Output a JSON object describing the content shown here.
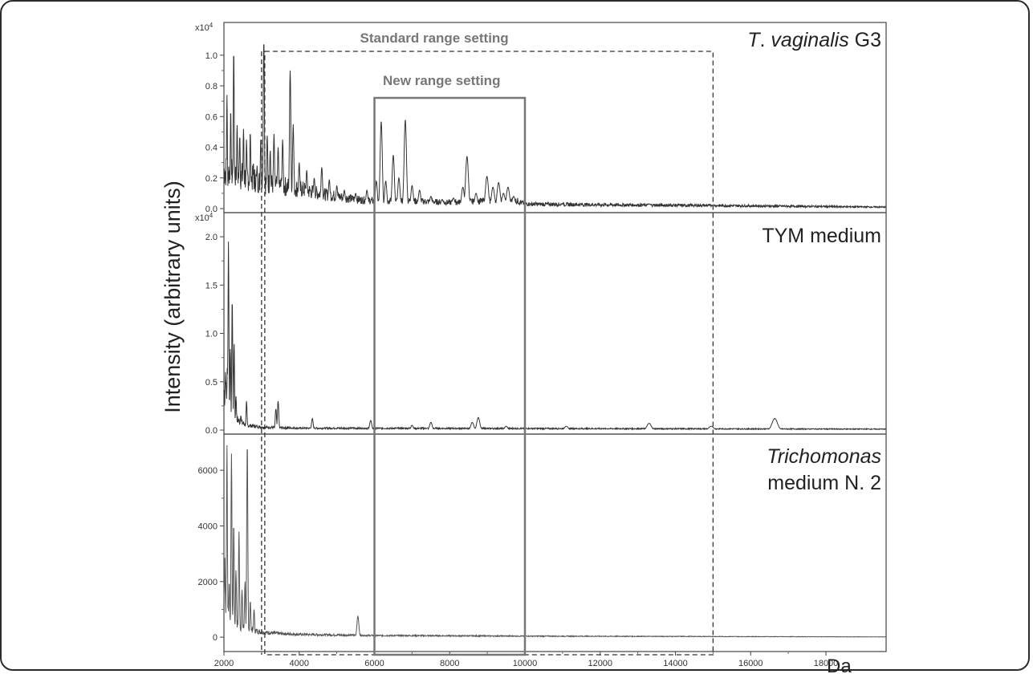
{
  "chart_data": {
    "type": "line",
    "ylabel": "Intensity (arbitrary units)",
    "xlabel": "Da",
    "xlim": [
      2000,
      19600
    ],
    "x_ticks": [
      2000,
      4000,
      6000,
      8000,
      10000,
      12000,
      14000,
      16000,
      18000
    ],
    "x_tick_labels": [
      "2000",
      "4000",
      "6000",
      "8000",
      "10000",
      "12000",
      "14000",
      "16000",
      "18000"
    ],
    "range_boxes": [
      {
        "label": "Standard range setting",
        "x_range": [
          3000,
          15000
        ],
        "style": "dashed"
      },
      {
        "label": "New range setting",
        "x_range": [
          6000,
          10000
        ],
        "style": "solid"
      }
    ],
    "panels": [
      {
        "label_parts": [
          {
            "text": "T",
            "italic": true
          },
          {
            "text": ". ",
            "italic": false
          },
          {
            "text": "vaginalis",
            "italic": true
          },
          {
            "text": " G3",
            "italic": false
          }
        ],
        "exponent_label": "x10",
        "exponent_power": "4",
        "ylim": [
          0,
          1.14
        ],
        "y_ticks": [
          0.0,
          0.2,
          0.4,
          0.6,
          0.8,
          1.0
        ],
        "y_tick_labels": [
          "0.0",
          "0.2",
          "0.4",
          "0.6",
          "0.8",
          "1.0"
        ],
        "baseline_points": [
          [
            2000,
            0.25
          ],
          [
            2300,
            0.22
          ],
          [
            2700,
            0.2
          ],
          [
            3000,
            0.17
          ],
          [
            3500,
            0.15
          ],
          [
            4000,
            0.13
          ],
          [
            4500,
            0.1
          ],
          [
            5000,
            0.08
          ],
          [
            5500,
            0.06
          ],
          [
            6000,
            0.05
          ],
          [
            7000,
            0.05
          ],
          [
            8000,
            0.04
          ],
          [
            9000,
            0.05
          ],
          [
            9800,
            0.05
          ],
          [
            10000,
            0.03
          ],
          [
            12000,
            0.025
          ],
          [
            15000,
            0.02
          ],
          [
            19600,
            0.01
          ]
        ],
        "peaks": [
          [
            2080,
            0.74
          ],
          [
            2180,
            0.65
          ],
          [
            2260,
            1.04
          ],
          [
            2350,
            0.55
          ],
          [
            2420,
            0.48
          ],
          [
            2520,
            0.52
          ],
          [
            2600,
            0.45
          ],
          [
            2700,
            0.5
          ],
          [
            2780,
            0.3
          ],
          [
            2880,
            0.28
          ],
          [
            2980,
            0.46
          ],
          [
            3060,
            1.1
          ],
          [
            3150,
            0.48
          ],
          [
            3230,
            0.38
          ],
          [
            3330,
            0.49
          ],
          [
            3440,
            0.4
          ],
          [
            3560,
            0.45
          ],
          [
            3760,
            0.9
          ],
          [
            3840,
            0.55
          ],
          [
            4000,
            0.3
          ],
          [
            4200,
            0.25
          ],
          [
            4400,
            0.2
          ],
          [
            4600,
            0.27
          ],
          [
            4800,
            0.19
          ],
          [
            5000,
            0.15
          ],
          [
            5200,
            0.12
          ],
          [
            5500,
            0.1
          ],
          [
            5800,
            0.12
          ],
          [
            6050,
            0.18
          ],
          [
            6180,
            0.57
          ],
          [
            6300,
            0.18
          ],
          [
            6500,
            0.35
          ],
          [
            6650,
            0.2
          ],
          [
            6820,
            0.58
          ],
          [
            7000,
            0.15
          ],
          [
            7200,
            0.12
          ],
          [
            7500,
            0.08
          ],
          [
            7800,
            0.06
          ],
          [
            8100,
            0.07
          ],
          [
            8350,
            0.14
          ],
          [
            8460,
            0.34
          ],
          [
            8700,
            0.1
          ],
          [
            8990,
            0.21
          ],
          [
            9150,
            0.14
          ],
          [
            9300,
            0.17
          ],
          [
            9430,
            0.1
          ],
          [
            9550,
            0.14
          ],
          [
            9700,
            0.08
          ],
          [
            11000,
            0.03
          ],
          [
            13300,
            0.03
          ],
          [
            15000,
            0.02
          ]
        ]
      },
      {
        "label_parts": [
          {
            "text": "TYM medium",
            "italic": false
          }
        ],
        "exponent_label": "x10",
        "exponent_power": "4",
        "ylim": [
          0,
          2.15
        ],
        "y_ticks": [
          0.0,
          0.5,
          1.0,
          1.5,
          2.0
        ],
        "y_tick_labels": [
          "0.0",
          "0.5",
          "1.0",
          "1.5",
          "2.0"
        ],
        "baseline_points": [
          [
            2000,
            0.4
          ],
          [
            2150,
            0.3
          ],
          [
            2300,
            0.12
          ],
          [
            2600,
            0.05
          ],
          [
            3000,
            0.03
          ],
          [
            4000,
            0.02
          ],
          [
            19600,
            0.01
          ]
        ],
        "peaks": [
          [
            2040,
            0.6
          ],
          [
            2090,
            0.65
          ],
          [
            2120,
            1.95
          ],
          [
            2170,
            0.85
          ],
          [
            2220,
            1.36
          ],
          [
            2270,
            0.9
          ],
          [
            2320,
            0.35
          ],
          [
            2450,
            0.15
          ],
          [
            2600,
            0.3
          ],
          [
            3380,
            0.22
          ],
          [
            3440,
            0.3
          ],
          [
            4350,
            0.12
          ],
          [
            5900,
            0.1
          ],
          [
            7000,
            0.05
          ],
          [
            7500,
            0.08
          ],
          [
            8600,
            0.08
          ],
          [
            8760,
            0.13
          ],
          [
            9500,
            0.04
          ],
          [
            11100,
            0.04
          ],
          [
            13300,
            0.07
          ],
          [
            14950,
            0.04
          ],
          [
            16640,
            0.12
          ]
        ]
      },
      {
        "label_parts": [
          {
            "text": "Trichomonas",
            "italic": true
          },
          {
            "text": "medium N. 2",
            "italic": false
          }
        ],
        "exponent_label": "",
        "exponent_power": "",
        "ylim": [
          -400,
          7100
        ],
        "y_ticks": [
          0,
          2000,
          4000,
          6000
        ],
        "y_tick_labels": [
          "0",
          "2000",
          "4000",
          "6000"
        ],
        "baseline_points": [
          [
            2000,
            1500
          ],
          [
            2100,
            1300
          ],
          [
            2200,
            900
          ],
          [
            2300,
            500
          ],
          [
            2500,
            350
          ],
          [
            2800,
            250
          ],
          [
            3000,
            180
          ],
          [
            3500,
            130
          ],
          [
            4000,
            100
          ],
          [
            6000,
            60
          ],
          [
            10000,
            40
          ],
          [
            19600,
            10
          ]
        ],
        "peaks": [
          [
            2020,
            3000
          ],
          [
            2080,
            6900
          ],
          [
            2140,
            2000
          ],
          [
            2200,
            6600
          ],
          [
            2260,
            4100
          ],
          [
            2320,
            2400
          ],
          [
            2400,
            3800
          ],
          [
            2480,
            1700
          ],
          [
            2560,
            2000
          ],
          [
            2620,
            7000
          ],
          [
            2700,
            1300
          ],
          [
            2800,
            1000
          ],
          [
            5560,
            750
          ]
        ]
      }
    ]
  }
}
